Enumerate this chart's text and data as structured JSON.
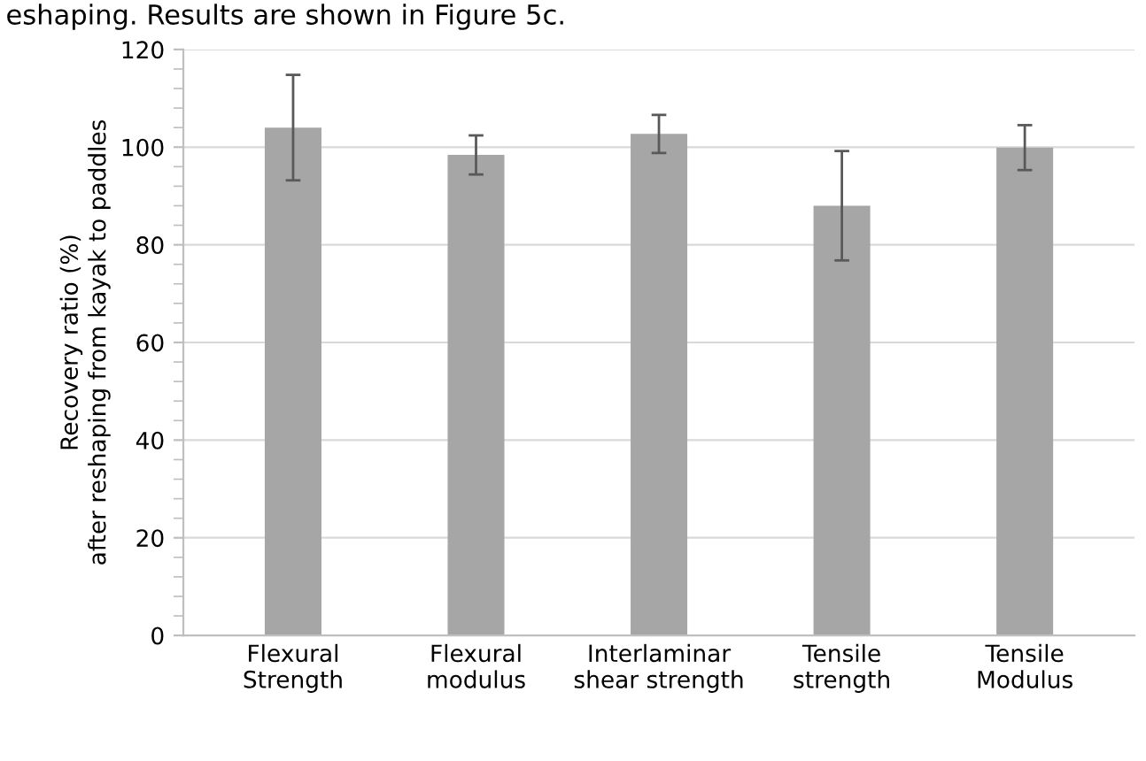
{
  "chart_data": {
    "type": "bar",
    "ylabel": "Recovery ratio (%)\nafter reshaping from kayak to paddles",
    "categories": [
      "Flexural\nStrength",
      "Flexural\nmodulus",
      "Interlaminar\nshear strength",
      "Tensile\nstrength",
      "Tensile\nModulus"
    ],
    "values": [
      104,
      98.4,
      102.7,
      88,
      99.9
    ],
    "errors": [
      10.8,
      4,
      3.9,
      11.2,
      4.6
    ],
    "color": "#a6a6a6",
    "ylim": [
      0,
      120
    ],
    "yticks": [
      0,
      20,
      40,
      60,
      80,
      100,
      120
    ],
    "grid": "y",
    "annotations": [
      "eshaping. Results are shown in Figure 5c."
    ]
  }
}
